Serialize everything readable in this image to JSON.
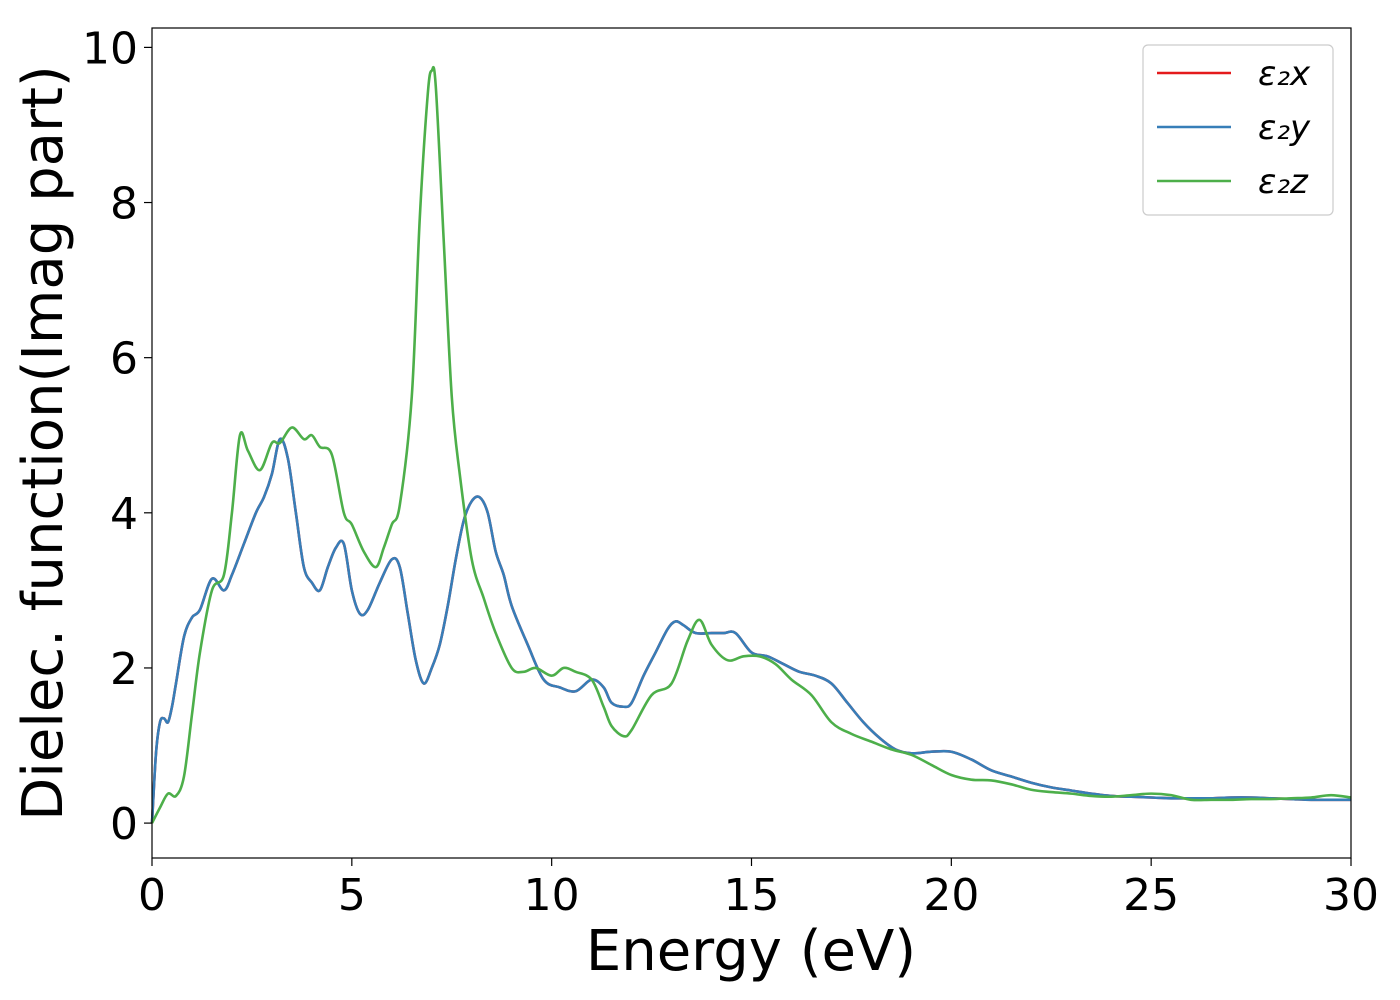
{
  "chart_data": {
    "type": "line",
    "title": "",
    "xlabel": "Energy (eV)",
    "ylabel": "Dielec. function(Imag part)",
    "xlim": [
      0,
      30
    ],
    "ylim": [
      -0.45,
      10.25
    ],
    "xticks": [
      0,
      5,
      10,
      15,
      20,
      25,
      30
    ],
    "yticks": [
      0,
      2,
      4,
      6,
      8,
      10
    ],
    "grid": false,
    "legend_position": "top-right",
    "series": [
      {
        "name": "ε₂x",
        "color": "#e41a1c",
        "x": [
          0,
          0.1,
          0.2,
          0.3,
          0.4,
          0.5,
          0.6,
          0.8,
          1.0,
          1.2,
          1.5,
          1.8,
          2.0,
          2.3,
          2.6,
          2.8,
          3.0,
          3.2,
          3.4,
          3.6,
          3.8,
          4.0,
          4.2,
          4.4,
          4.6,
          4.8,
          5.0,
          5.2,
          5.4,
          5.7,
          6.0,
          6.2,
          6.4,
          6.6,
          6.8,
          7.0,
          7.2,
          7.4,
          7.6,
          7.8,
          8.0,
          8.2,
          8.4,
          8.6,
          8.8,
          9.0,
          9.4,
          9.8,
          10.2,
          10.6,
          11.0,
          11.3,
          11.5,
          11.8,
          12.0,
          12.3,
          12.6,
          12.9,
          13.1,
          13.3,
          13.6,
          14.0,
          14.3,
          14.6,
          15.0,
          15.4,
          15.8,
          16.2,
          16.6,
          17.0,
          17.4,
          17.8,
          18.2,
          18.6,
          19.0,
          19.5,
          20.0,
          20.5,
          21.0,
          21.5,
          22.0,
          22.5,
          23.0,
          23.5,
          24.0,
          24.5,
          25.0,
          25.5,
          26.0,
          26.5,
          27.0,
          27.5,
          28.0,
          28.5,
          29.0,
          29.5,
          30.0
        ],
        "y": [
          0.0,
          0.9,
          1.3,
          1.35,
          1.3,
          1.5,
          1.8,
          2.4,
          2.65,
          2.75,
          3.15,
          3.0,
          3.2,
          3.6,
          4.0,
          4.2,
          4.5,
          4.95,
          4.7,
          4.0,
          3.3,
          3.1,
          3.0,
          3.3,
          3.55,
          3.6,
          3.0,
          2.7,
          2.75,
          3.1,
          3.4,
          3.3,
          2.7,
          2.1,
          1.8,
          2.0,
          2.3,
          2.8,
          3.4,
          3.9,
          4.15,
          4.2,
          4.0,
          3.5,
          3.2,
          2.8,
          2.3,
          1.85,
          1.75,
          1.7,
          1.85,
          1.75,
          1.55,
          1.5,
          1.55,
          1.9,
          2.2,
          2.5,
          2.6,
          2.55,
          2.45,
          2.45,
          2.45,
          2.45,
          2.2,
          2.15,
          2.05,
          1.95,
          1.9,
          1.8,
          1.55,
          1.3,
          1.1,
          0.95,
          0.9,
          0.92,
          0.92,
          0.82,
          0.68,
          0.6,
          0.52,
          0.46,
          0.42,
          0.38,
          0.35,
          0.34,
          0.33,
          0.32,
          0.32,
          0.32,
          0.33,
          0.33,
          0.32,
          0.31,
          0.3,
          0.3,
          0.3
        ]
      },
      {
        "name": "ε₂y",
        "color": "#377eb8",
        "x": [
          0,
          0.1,
          0.2,
          0.3,
          0.4,
          0.5,
          0.6,
          0.8,
          1.0,
          1.2,
          1.5,
          1.8,
          2.0,
          2.3,
          2.6,
          2.8,
          3.0,
          3.2,
          3.4,
          3.6,
          3.8,
          4.0,
          4.2,
          4.4,
          4.6,
          4.8,
          5.0,
          5.2,
          5.4,
          5.7,
          6.0,
          6.2,
          6.4,
          6.6,
          6.8,
          7.0,
          7.2,
          7.4,
          7.6,
          7.8,
          8.0,
          8.2,
          8.4,
          8.6,
          8.8,
          9.0,
          9.4,
          9.8,
          10.2,
          10.6,
          11.0,
          11.3,
          11.5,
          11.8,
          12.0,
          12.3,
          12.6,
          12.9,
          13.1,
          13.3,
          13.6,
          14.0,
          14.3,
          14.6,
          15.0,
          15.4,
          15.8,
          16.2,
          16.6,
          17.0,
          17.4,
          17.8,
          18.2,
          18.6,
          19.0,
          19.5,
          20.0,
          20.5,
          21.0,
          21.5,
          22.0,
          22.5,
          23.0,
          23.5,
          24.0,
          24.5,
          25.0,
          25.5,
          26.0,
          26.5,
          27.0,
          27.5,
          28.0,
          28.5,
          29.0,
          29.5,
          30.0
        ],
        "y": [
          0.0,
          0.9,
          1.3,
          1.35,
          1.3,
          1.5,
          1.8,
          2.4,
          2.65,
          2.75,
          3.15,
          3.0,
          3.2,
          3.6,
          4.0,
          4.2,
          4.5,
          4.95,
          4.7,
          4.0,
          3.3,
          3.1,
          3.0,
          3.3,
          3.55,
          3.6,
          3.0,
          2.7,
          2.75,
          3.1,
          3.4,
          3.3,
          2.7,
          2.1,
          1.8,
          2.0,
          2.3,
          2.8,
          3.4,
          3.9,
          4.15,
          4.2,
          4.0,
          3.5,
          3.2,
          2.8,
          2.3,
          1.85,
          1.75,
          1.7,
          1.85,
          1.75,
          1.55,
          1.5,
          1.55,
          1.9,
          2.2,
          2.5,
          2.6,
          2.55,
          2.45,
          2.45,
          2.45,
          2.45,
          2.2,
          2.15,
          2.05,
          1.95,
          1.9,
          1.8,
          1.55,
          1.3,
          1.1,
          0.95,
          0.9,
          0.92,
          0.92,
          0.82,
          0.68,
          0.6,
          0.52,
          0.46,
          0.42,
          0.38,
          0.35,
          0.34,
          0.33,
          0.32,
          0.32,
          0.32,
          0.33,
          0.33,
          0.32,
          0.31,
          0.3,
          0.3,
          0.3
        ]
      },
      {
        "name": "ε₂z",
        "color": "#4daf4a",
        "x": [
          0,
          0.2,
          0.4,
          0.6,
          0.8,
          1.0,
          1.2,
          1.5,
          1.8,
          2.0,
          2.2,
          2.4,
          2.7,
          3.0,
          3.2,
          3.5,
          3.8,
          4.0,
          4.2,
          4.5,
          4.8,
          5.0,
          5.3,
          5.6,
          5.8,
          6.0,
          6.2,
          6.5,
          6.7,
          6.9,
          7.0,
          7.1,
          7.3,
          7.5,
          7.7,
          8.0,
          8.3,
          8.6,
          9.0,
          9.3,
          9.6,
          10.0,
          10.3,
          10.6,
          11.0,
          11.3,
          11.5,
          11.8,
          12.0,
          12.5,
          13.0,
          13.4,
          13.7,
          14.0,
          14.4,
          14.8,
          15.2,
          15.6,
          16.0,
          16.5,
          17.0,
          17.5,
          18.0,
          18.5,
          19.0,
          19.5,
          20.0,
          20.5,
          21.0,
          21.5,
          22.0,
          22.5,
          23.0,
          23.5,
          24.0,
          24.5,
          25.0,
          25.5,
          26.0,
          26.5,
          27.0,
          27.5,
          28.0,
          28.5,
          29.0,
          29.5,
          30.0
        ],
        "y": [
          0.0,
          0.2,
          0.38,
          0.35,
          0.6,
          1.4,
          2.2,
          3.0,
          3.2,
          4.0,
          5.0,
          4.8,
          4.55,
          4.9,
          4.9,
          5.1,
          4.95,
          5.0,
          4.85,
          4.75,
          4.0,
          3.85,
          3.5,
          3.3,
          3.55,
          3.85,
          4.1,
          5.5,
          7.8,
          9.4,
          9.7,
          9.5,
          7.5,
          5.5,
          4.5,
          3.4,
          2.9,
          2.45,
          2.0,
          1.95,
          2.0,
          1.9,
          2.0,
          1.95,
          1.85,
          1.5,
          1.25,
          1.12,
          1.2,
          1.65,
          1.8,
          2.35,
          2.62,
          2.3,
          2.1,
          2.15,
          2.15,
          2.05,
          1.85,
          1.65,
          1.3,
          1.15,
          1.05,
          0.95,
          0.88,
          0.75,
          0.62,
          0.56,
          0.55,
          0.5,
          0.43,
          0.4,
          0.38,
          0.35,
          0.34,
          0.36,
          0.38,
          0.36,
          0.3,
          0.3,
          0.3,
          0.31,
          0.31,
          0.32,
          0.33,
          0.36,
          0.33
        ]
      }
    ]
  }
}
